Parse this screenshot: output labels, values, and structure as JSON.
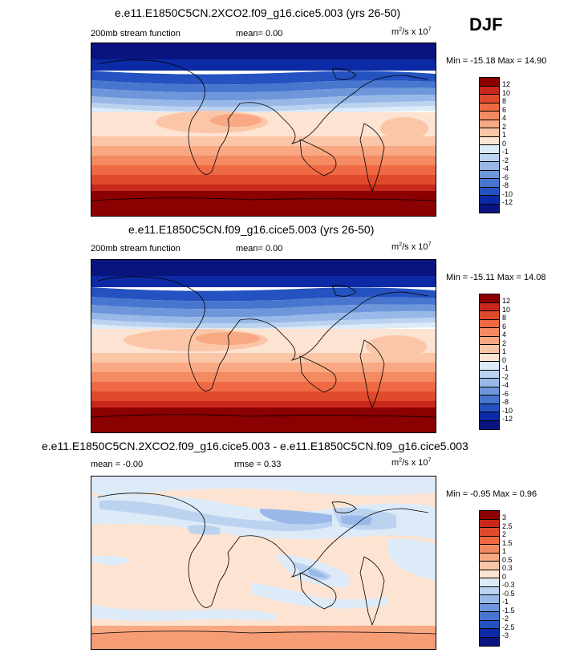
{
  "season": "DJF",
  "panels": [
    {
      "title": "e.e11.E1850C5CN.2XCO2.f09_g16.cice5.003 (yrs 26-50)",
      "left_label": "200mb stream function",
      "mid_label": "mean=   0.00",
      "units": "m",
      "units_sup": "2",
      "units_mid": "/s x 10",
      "units_sup2": "7",
      "minmax": "Min = -15.18 Max =  14.90",
      "levels": [
        "12",
        "10",
        "8",
        "6",
        "4",
        "2",
        "1",
        "0",
        "-1",
        "-2",
        "-4",
        "-6",
        "-8",
        "-10",
        "-12"
      ],
      "colors": [
        "#8b0000",
        "#c8281a",
        "#e04a2c",
        "#ef6a44",
        "#f48a62",
        "#f8a882",
        "#fbc6a8",
        "#fde3d1",
        "#ddeaf8",
        "#bcd3f0",
        "#98b9e8",
        "#6e97db",
        "#4876cf",
        "#2452c0",
        "#0c2aa5",
        "#0a147f"
      ]
    },
    {
      "title": "e.e11.E1850C5CN.f09_g16.cice5.003 (yrs 26-50)",
      "left_label": "200mb stream function",
      "mid_label": "mean=   0.00",
      "units": "m",
      "units_sup": "2",
      "units_mid": "/s x 10",
      "units_sup2": "7",
      "minmax": "Min = -15.11 Max =  14.08",
      "levels": [
        "12",
        "10",
        "8",
        "6",
        "4",
        "2",
        "1",
        "0",
        "-1",
        "-2",
        "-4",
        "-6",
        "-8",
        "-10",
        "-12"
      ],
      "colors": [
        "#8b0000",
        "#c8281a",
        "#e04a2c",
        "#ef6a44",
        "#f48a62",
        "#f8a882",
        "#fbc6a8",
        "#fde3d1",
        "#ddeaf8",
        "#bcd3f0",
        "#98b9e8",
        "#6e97db",
        "#4876cf",
        "#2452c0",
        "#0c2aa5",
        "#0a147f"
      ]
    },
    {
      "title": "e.e11.E1850C5CN.2XCO2.f09_g16.cice5.003 - e.e11.E1850C5CN.f09_g16.cice5.003",
      "left_label": "mean = -0.00",
      "mid_label": "rmse =   0.33",
      "units": "m",
      "units_sup": "2",
      "units_mid": "/s x 10",
      "units_sup2": "7",
      "minmax": "Min = -0.95 Max =  0.96",
      "levels": [
        "3",
        "2.5",
        "2",
        "1.5",
        "1",
        "0.5",
        "0.3",
        "0",
        "-0.3",
        "-0.5",
        "-1",
        "-1.5",
        "-2",
        "-2.5",
        "-3"
      ],
      "colors": [
        "#8b0000",
        "#c8281a",
        "#e04a2c",
        "#ef6a44",
        "#f48a62",
        "#f8a882",
        "#fbc6a8",
        "#fde3d1",
        "#ddeaf8",
        "#bcd3f0",
        "#98b9e8",
        "#6e97db",
        "#4876cf",
        "#2452c0",
        "#0c2aa5",
        "#0a147f"
      ]
    }
  ]
}
